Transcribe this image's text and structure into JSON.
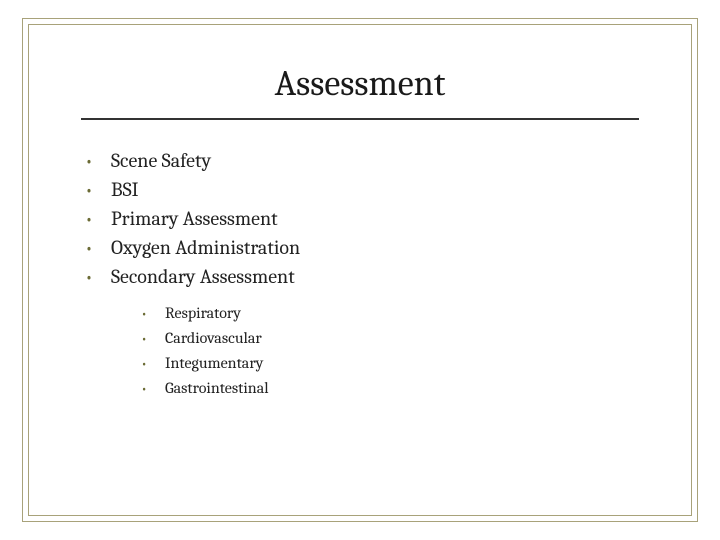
{
  "slide": {
    "title": "Assessment",
    "background_color": "#ffffff",
    "frame_color": "#a8a27a",
    "divider_color": "#333333",
    "text_color": "#222222",
    "bullet_color": "#6b6b35",
    "title_fontsize": 36,
    "main_fontsize": 20,
    "sub_fontsize": 16,
    "main_items": [
      "Scene Safety",
      "BSI",
      "Primary Assessment",
      "Oxygen Administration",
      "Secondary Assessment"
    ],
    "sub_items": [
      "Respiratory",
      "Cardiovascular",
      "Integumentary",
      "Gastrointestinal"
    ]
  }
}
